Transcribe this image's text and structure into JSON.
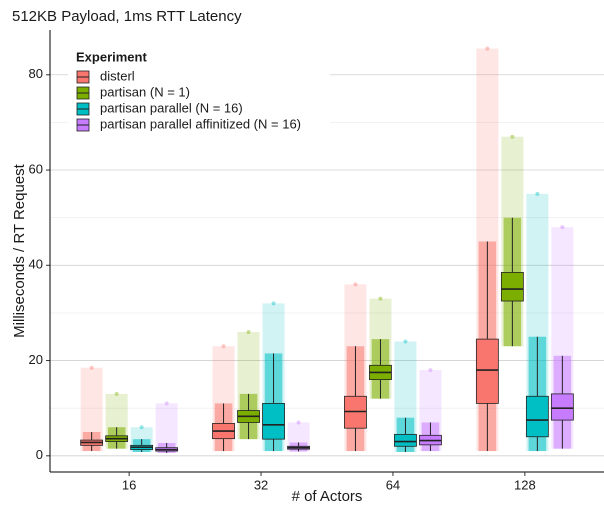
{
  "chart_data": {
    "type": "box",
    "title": "512KB Payload, 1ms RTT Latency",
    "x_label": "# of Actors",
    "y_label": "Milliseconds / RT Request",
    "categories": [
      "16",
      "32",
      "64",
      "128"
    ],
    "ylim": [
      -3.4,
      89.4
    ],
    "yticks": [
      0,
      20,
      40,
      60,
      80
    ],
    "minor_yticks": [
      10,
      30,
      50,
      70
    ],
    "grid": true,
    "legend_title": "Experiment",
    "legend_position": "top-left",
    "series": [
      {
        "name": "disterl",
        "color": "#F8766D",
        "whisker_low": [
          1,
          1,
          1,
          1
        ],
        "q1": [
          2.2,
          3.6,
          5.8,
          11
        ],
        "median": [
          2.8,
          5.2,
          9.3,
          18
        ],
        "q3": [
          3.3,
          6.8,
          12.5,
          24.5
        ],
        "whisker_high": [
          5,
          11,
          23,
          45
        ],
        "max": [
          18.5,
          23,
          36,
          85.5
        ]
      },
      {
        "name": "partisan (N = 1)",
        "color": "#7CAE00",
        "whisker_low": [
          1.5,
          3.5,
          12,
          23
        ],
        "q1": [
          3.0,
          7.0,
          16,
          32.5
        ],
        "median": [
          3.6,
          8.3,
          17.5,
          35
        ],
        "q3": [
          4.2,
          9.5,
          19,
          38.5
        ],
        "whisker_high": [
          6,
          13,
          24.5,
          50
        ],
        "max": [
          13,
          26,
          33,
          67
        ]
      },
      {
        "name": "partisan parallel (N = 16)",
        "color": "#00BFC4",
        "whisker_low": [
          0.8,
          1,
          0.8,
          1
        ],
        "q1": [
          1.3,
          3.5,
          2,
          4
        ],
        "median": [
          1.8,
          6.5,
          3,
          7.5
        ],
        "q3": [
          2.2,
          11,
          4.5,
          12.5
        ],
        "whisker_high": [
          3.5,
          21.5,
          8,
          25
        ],
        "max": [
          6,
          32,
          24,
          55
        ]
      },
      {
        "name": "partisan parallel affinitized (N = 16)",
        "color": "#C77CFF",
        "whisker_low": [
          0.6,
          0.9,
          1,
          1.5
        ],
        "q1": [
          1.0,
          1.4,
          2.3,
          7.5
        ],
        "median": [
          1.3,
          1.7,
          3.2,
          10
        ],
        "q3": [
          1.7,
          2.0,
          4.3,
          13
        ],
        "whisker_high": [
          2.7,
          2.8,
          7,
          21
        ],
        "max": [
          11,
          7,
          18,
          48
        ]
      }
    ]
  }
}
